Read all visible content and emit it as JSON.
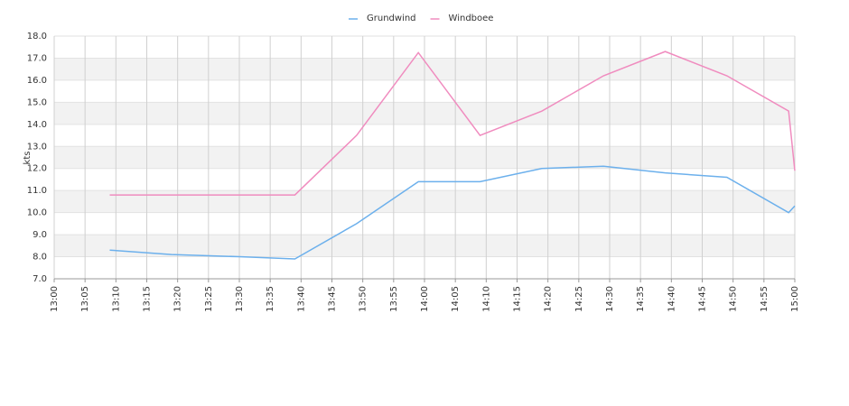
{
  "chart_data": {
    "type": "line",
    "y_label": "kts",
    "x": [
      "13:09",
      "13:19",
      "13:30",
      "13:39",
      "13:49",
      "13:59",
      "14:09",
      "14:19",
      "14:29",
      "14:39",
      "14:49",
      "14:59",
      "15:00"
    ],
    "series": [
      {
        "name": "Grundwind",
        "color": "#6cb0ec",
        "values": [
          8.3,
          8.1,
          8.0,
          7.9,
          9.5,
          11.4,
          11.4,
          12.0,
          12.1,
          11.8,
          11.6,
          10.0,
          10.3
        ]
      },
      {
        "name": "Windboee",
        "color": "#f08cbf",
        "values": [
          10.8,
          10.8,
          10.8,
          10.8,
          13.5,
          17.25,
          13.5,
          14.6,
          16.2,
          17.3,
          16.2,
          14.6,
          11.9
        ]
      }
    ],
    "xlim": [
      "13:00",
      "15:00"
    ],
    "xticks": [
      "13:00",
      "13:05",
      "13:10",
      "13:15",
      "13:20",
      "13:25",
      "13:30",
      "13:35",
      "13:40",
      "13:45",
      "13:50",
      "13:55",
      "14:00",
      "14:05",
      "14:10",
      "14:15",
      "14:20",
      "14:25",
      "14:30",
      "14:35",
      "14:40",
      "14:45",
      "14:50",
      "14:55",
      "15:00"
    ],
    "ylim": [
      7,
      18
    ],
    "yticks": [
      {
        "value": 7,
        "label": "7.0"
      },
      {
        "value": 8,
        "label": "8.0"
      },
      {
        "value": 9,
        "label": "9.0"
      },
      {
        "value": 10,
        "label": "10.0"
      },
      {
        "value": 11,
        "label": "11.0"
      },
      {
        "value": 12,
        "label": "12.0"
      },
      {
        "value": 13,
        "label": "13.0"
      },
      {
        "value": 14,
        "label": "14.0"
      },
      {
        "value": 15,
        "label": "15.0"
      },
      {
        "value": 16,
        "label": "16.0"
      },
      {
        "value": 17,
        "label": "17.0"
      },
      {
        "value": 18,
        "label": "18.0"
      }
    ],
    "grid": true,
    "legend": "top"
  }
}
